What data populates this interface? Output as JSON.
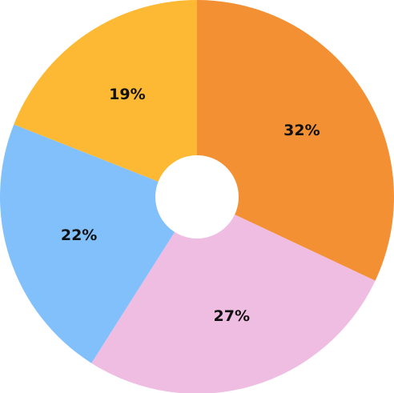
{
  "chart_data": {
    "type": "pie",
    "style": "donut",
    "start_angle_deg": 0,
    "direction": "clockwise",
    "slices": [
      {
        "label": "32%",
        "value": 32,
        "color": "#F39034"
      },
      {
        "label": "27%",
        "value": 27,
        "color": "#F0BDE2"
      },
      {
        "label": "22%",
        "value": 22,
        "color": "#82C0FC"
      },
      {
        "label": "19%",
        "value": 19,
        "color": "#FDB933"
      }
    ],
    "title": "",
    "legend": "none"
  }
}
